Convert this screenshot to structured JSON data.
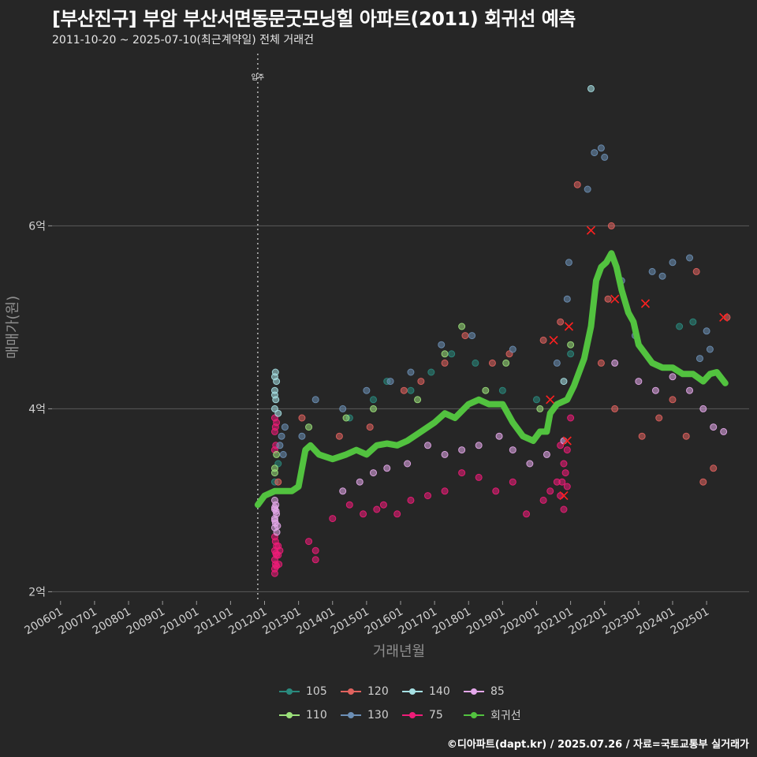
{
  "title": "[부산진구] 부암 부산서면동문굿모닝힐 아파트(2011) 회귀선 예측",
  "subtitle": "2011-10-20 ~ 2025-07-10(최근계약일) 전체 거래건",
  "caption": "©디아파트(dapt.kr) / 2025.07.26 / 자료=국토교통부 실거래가",
  "colors": {
    "105": "#2a8a7e",
    "110": "#9be07a",
    "120": "#e0625e",
    "130": "#6c8fb5",
    "140": "#a6e0e3",
    "75": "#ee1c78",
    "85": "#e4a8ea",
    "회귀선": "#52c23f",
    "background": "#262626",
    "grid": "#5a5a5a",
    "cancel": "#ff2020"
  },
  "chart_data": {
    "type": "scatter",
    "title": "[부산진구] 부암 부산서면동문굿모닝힐 아파트(2011) 회귀선 예측",
    "xlabel": "거래년월",
    "ylabel": "매매가(원)",
    "x_unit": "year (decimal)",
    "y_unit": "억원",
    "xlim": [
      2005.75,
      2026.25
    ],
    "ylim": [
      1.9,
      7.9
    ],
    "x_ticks": [
      "200601",
      "200701",
      "200801",
      "200901",
      "201001",
      "201101",
      "201201",
      "201301",
      "201401",
      "201501",
      "201601",
      "201701",
      "201801",
      "201901",
      "202001",
      "202101",
      "202201",
      "202301",
      "202401",
      "202501"
    ],
    "y_ticks": [
      {
        "value": 2,
        "label": "2억"
      },
      {
        "value": 4,
        "label": "4억"
      },
      {
        "value": 6,
        "label": "6억"
      }
    ],
    "move_in": {
      "x": 2011.8,
      "label": "입주"
    },
    "legend": [
      {
        "key": "105",
        "label": "105"
      },
      {
        "key": "120",
        "label": "120"
      },
      {
        "key": "140",
        "label": "140"
      },
      {
        "key": "85",
        "label": "85"
      },
      {
        "key": "110",
        "label": "110"
      },
      {
        "key": "130",
        "label": "130"
      },
      {
        "key": "75",
        "label": "75"
      },
      {
        "key": "회귀선",
        "label": "회귀선"
      }
    ],
    "series": [
      {
        "name": "75",
        "points": [
          [
            2012.3,
            2.2
          ],
          [
            2012.3,
            2.25
          ],
          [
            2012.32,
            2.3
          ],
          [
            2012.3,
            2.35
          ],
          [
            2012.35,
            2.4
          ],
          [
            2012.3,
            2.45
          ],
          [
            2012.35,
            2.5
          ],
          [
            2012.32,
            2.55
          ],
          [
            2012.3,
            2.6
          ],
          [
            2012.4,
            2.4
          ],
          [
            2012.4,
            2.5
          ],
          [
            2012.42,
            2.3
          ],
          [
            2012.35,
            2.28
          ],
          [
            2012.33,
            2.42
          ],
          [
            2012.45,
            2.45
          ],
          [
            2012.3,
            3.75
          ],
          [
            2012.32,
            3.8
          ],
          [
            2012.35,
            3.85
          ],
          [
            2012.3,
            3.9
          ],
          [
            2012.33,
            3.6
          ],
          [
            2012.3,
            3.55
          ],
          [
            2013.3,
            2.55
          ],
          [
            2013.5,
            2.35
          ],
          [
            2013.5,
            2.45
          ],
          [
            2014.0,
            2.8
          ],
          [
            2014.5,
            2.95
          ],
          [
            2014.9,
            2.85
          ],
          [
            2015.3,
            2.9
          ],
          [
            2015.5,
            2.95
          ],
          [
            2015.9,
            2.85
          ],
          [
            2016.3,
            3.0
          ],
          [
            2016.8,
            3.05
          ],
          [
            2017.3,
            3.1
          ],
          [
            2017.8,
            3.3
          ],
          [
            2018.3,
            3.25
          ],
          [
            2018.8,
            3.1
          ],
          [
            2019.3,
            3.2
          ],
          [
            2019.7,
            2.85
          ],
          [
            2020.2,
            3.0
          ],
          [
            2020.4,
            3.1
          ],
          [
            2020.6,
            3.2
          ],
          [
            2020.7,
            3.05
          ],
          [
            2020.8,
            2.9
          ],
          [
            2020.85,
            3.3
          ],
          [
            2020.9,
            3.55
          ],
          [
            2020.8,
            3.4
          ],
          [
            2020.7,
            3.6
          ],
          [
            2021.0,
            3.9
          ],
          [
            2020.9,
            3.15
          ],
          [
            2020.75,
            3.2
          ]
        ]
      },
      {
        "name": "85",
        "points": [
          [
            2012.3,
            2.7
          ],
          [
            2012.32,
            2.75
          ],
          [
            2012.3,
            2.8
          ],
          [
            2012.35,
            2.85
          ],
          [
            2012.3,
            2.9
          ],
          [
            2012.33,
            2.95
          ],
          [
            2012.3,
            3.0
          ],
          [
            2012.36,
            2.65
          ],
          [
            2012.3,
            2.78
          ],
          [
            2012.34,
            2.88
          ],
          [
            2012.3,
            2.92
          ],
          [
            2012.38,
            2.72
          ],
          [
            2014.3,
            3.1
          ],
          [
            2014.8,
            3.2
          ],
          [
            2015.2,
            3.3
          ],
          [
            2015.6,
            3.35
          ],
          [
            2016.2,
            3.4
          ],
          [
            2016.8,
            3.6
          ],
          [
            2017.3,
            3.5
          ],
          [
            2017.8,
            3.55
          ],
          [
            2018.3,
            3.6
          ],
          [
            2018.9,
            3.7
          ],
          [
            2019.3,
            3.55
          ],
          [
            2019.8,
            3.4
          ],
          [
            2020.3,
            3.5
          ],
          [
            2020.8,
            3.65
          ],
          [
            2022.3,
            4.5
          ],
          [
            2023.0,
            4.3
          ],
          [
            2023.5,
            4.2
          ],
          [
            2024.0,
            4.35
          ],
          [
            2024.5,
            4.2
          ],
          [
            2024.9,
            4.0
          ],
          [
            2025.2,
            3.8
          ],
          [
            2025.5,
            3.75
          ]
        ]
      },
      {
        "name": "105",
        "points": [
          [
            2012.3,
            3.2
          ],
          [
            2012.4,
            3.4
          ],
          [
            2014.5,
            3.9
          ],
          [
            2015.2,
            4.1
          ],
          [
            2015.6,
            4.3
          ],
          [
            2016.3,
            4.2
          ],
          [
            2016.9,
            4.4
          ],
          [
            2017.5,
            4.6
          ],
          [
            2018.2,
            4.5
          ],
          [
            2019.0,
            4.2
          ],
          [
            2020.0,
            4.1
          ],
          [
            2021.0,
            4.6
          ],
          [
            2024.2,
            4.9
          ],
          [
            2024.6,
            4.95
          ]
        ]
      },
      {
        "name": "110",
        "points": [
          [
            2012.3,
            3.3
          ],
          [
            2012.35,
            3.5
          ],
          [
            2012.3,
            3.35
          ],
          [
            2013.3,
            3.8
          ],
          [
            2014.4,
            3.9
          ],
          [
            2015.2,
            4.0
          ],
          [
            2016.5,
            4.1
          ],
          [
            2017.3,
            4.6
          ],
          [
            2017.8,
            4.9
          ],
          [
            2018.5,
            4.2
          ],
          [
            2019.1,
            4.5
          ],
          [
            2020.1,
            4.0
          ],
          [
            2021.0,
            4.7
          ]
        ]
      },
      {
        "name": "120",
        "points": [
          [
            2012.4,
            3.2
          ],
          [
            2013.1,
            3.9
          ],
          [
            2014.2,
            3.7
          ],
          [
            2015.1,
            3.8
          ],
          [
            2016.1,
            4.2
          ],
          [
            2016.6,
            4.3
          ],
          [
            2017.3,
            4.5
          ],
          [
            2017.9,
            4.8
          ],
          [
            2018.7,
            4.5
          ],
          [
            2019.2,
            4.6
          ],
          [
            2020.2,
            4.75
          ],
          [
            2020.7,
            4.95
          ],
          [
            2021.2,
            6.45
          ],
          [
            2021.9,
            4.5
          ],
          [
            2022.1,
            5.2
          ],
          [
            2022.2,
            6.0
          ],
          [
            2022.3,
            4.0
          ],
          [
            2023.1,
            3.7
          ],
          [
            2023.6,
            3.9
          ],
          [
            2024.0,
            4.1
          ],
          [
            2024.4,
            3.7
          ],
          [
            2024.7,
            5.5
          ],
          [
            2024.9,
            3.2
          ],
          [
            2025.2,
            3.35
          ],
          [
            2025.6,
            5.0
          ]
        ]
      },
      {
        "name": "130",
        "points": [
          [
            2012.45,
            3.6
          ],
          [
            2012.5,
            3.7
          ],
          [
            2012.6,
            3.8
          ],
          [
            2012.55,
            3.5
          ],
          [
            2013.1,
            3.7
          ],
          [
            2013.5,
            4.1
          ],
          [
            2014.3,
            4.0
          ],
          [
            2015.0,
            4.2
          ],
          [
            2015.7,
            4.3
          ],
          [
            2016.3,
            4.4
          ],
          [
            2017.2,
            4.7
          ],
          [
            2018.1,
            4.8
          ],
          [
            2019.3,
            4.65
          ],
          [
            2020.6,
            4.5
          ],
          [
            2020.9,
            5.2
          ],
          [
            2020.95,
            5.6
          ],
          [
            2021.5,
            6.4
          ],
          [
            2021.7,
            6.8
          ],
          [
            2021.9,
            6.85
          ],
          [
            2022.0,
            6.75
          ],
          [
            2022.5,
            5.4
          ],
          [
            2022.9,
            4.8
          ],
          [
            2023.4,
            5.5
          ],
          [
            2023.7,
            5.45
          ],
          [
            2024.0,
            5.6
          ],
          [
            2024.5,
            5.65
          ],
          [
            2024.8,
            4.55
          ],
          [
            2025.0,
            4.85
          ],
          [
            2025.1,
            4.65
          ]
        ]
      },
      {
        "name": "140",
        "points": [
          [
            2012.3,
            4.0
          ],
          [
            2012.33,
            4.1
          ],
          [
            2012.3,
            4.2
          ],
          [
            2012.35,
            4.3
          ],
          [
            2012.3,
            4.35
          ],
          [
            2012.32,
            4.4
          ],
          [
            2012.4,
            3.95
          ],
          [
            2012.3,
            4.15
          ],
          [
            2020.8,
            4.3
          ],
          [
            2021.6,
            7.5
          ]
        ]
      },
      {
        "name": "cancel",
        "points": [
          [
            2020.5,
            4.75
          ],
          [
            2020.4,
            4.1
          ],
          [
            2020.8,
            3.05
          ],
          [
            2020.9,
            3.65
          ],
          [
            2020.95,
            4.9
          ],
          [
            2021.6,
            5.95
          ],
          [
            2022.3,
            5.2
          ],
          [
            2023.2,
            5.15
          ],
          [
            2025.5,
            5.0
          ]
        ]
      }
    ],
    "regression": {
      "name": "회귀선",
      "points": [
        [
          2011.8,
          2.95
        ],
        [
          2012.0,
          3.05
        ],
        [
          2012.3,
          3.1
        ],
        [
          2012.8,
          3.1
        ],
        [
          2013.0,
          3.15
        ],
        [
          2013.2,
          3.55
        ],
        [
          2013.35,
          3.6
        ],
        [
          2013.6,
          3.5
        ],
        [
          2014.0,
          3.45
        ],
        [
          2014.4,
          3.5
        ],
        [
          2014.7,
          3.55
        ],
        [
          2015.0,
          3.5
        ],
        [
          2015.3,
          3.6
        ],
        [
          2015.6,
          3.62
        ],
        [
          2015.9,
          3.6
        ],
        [
          2016.2,
          3.65
        ],
        [
          2016.6,
          3.75
        ],
        [
          2017.0,
          3.85
        ],
        [
          2017.3,
          3.95
        ],
        [
          2017.6,
          3.9
        ],
        [
          2018.0,
          4.05
        ],
        [
          2018.3,
          4.1
        ],
        [
          2018.6,
          4.05
        ],
        [
          2019.0,
          4.05
        ],
        [
          2019.3,
          3.85
        ],
        [
          2019.6,
          3.7
        ],
        [
          2019.9,
          3.65
        ],
        [
          2020.1,
          3.75
        ],
        [
          2020.3,
          3.75
        ],
        [
          2020.4,
          3.95
        ],
        [
          2020.6,
          4.05
        ],
        [
          2020.9,
          4.1
        ],
        [
          2021.1,
          4.25
        ],
        [
          2021.4,
          4.55
        ],
        [
          2021.6,
          4.9
        ],
        [
          2021.75,
          5.4
        ],
        [
          2021.9,
          5.55
        ],
        [
          2022.05,
          5.6
        ],
        [
          2022.2,
          5.7
        ],
        [
          2022.35,
          5.55
        ],
        [
          2022.5,
          5.3
        ],
        [
          2022.7,
          5.05
        ],
        [
          2022.85,
          4.95
        ],
        [
          2023.0,
          4.7
        ],
        [
          2023.2,
          4.6
        ],
        [
          2023.4,
          4.5
        ],
        [
          2023.7,
          4.45
        ],
        [
          2024.0,
          4.45
        ],
        [
          2024.3,
          4.38
        ],
        [
          2024.6,
          4.38
        ],
        [
          2024.9,
          4.3
        ],
        [
          2025.1,
          4.38
        ],
        [
          2025.3,
          4.4
        ],
        [
          2025.55,
          4.28
        ]
      ]
    }
  }
}
